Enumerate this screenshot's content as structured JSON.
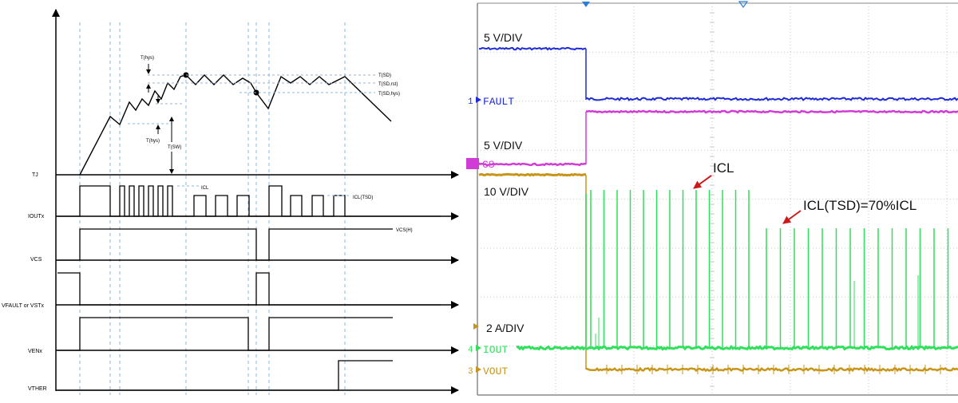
{
  "colors": {
    "dash_guide": "#8fb4dd",
    "scope_bg": "#ffffff",
    "scope_grid": "#c9c9c9",
    "scope_border": "#8a8a8a",
    "fault": "#1f2bd6",
    "cs": "#d23cd6",
    "iout": "#2fe05a",
    "vout": "#c8951a",
    "arrow_red": "#cc1a1a",
    "trigger": "#2a7fd8"
  },
  "timing": {
    "temp_annotations": {
      "t_hys_top": "T(hys)",
      "t_hys_bottom": "T(hys)",
      "t_sw": "T(SW)",
      "t_sd": "T(SD)",
      "t_sd_rst": "T(SD,rst)",
      "t_sd_hys": "T(SD,hys)"
    },
    "signal_labels": {
      "tj": "TJ",
      "ioutx": "IOUTx",
      "vcs": "VCS",
      "vfault": "VFAULT or VSTx",
      "venx": "VENx",
      "vther": "VTHER"
    },
    "inline_labels": {
      "icl": "ICL",
      "icl_tsd": "ICL(TSD)",
      "vcsh": "VCS(H)"
    }
  },
  "scope": {
    "scale_fault": "5 V/DIV",
    "scale_cs": "5 V/DIV",
    "scale_vout": "10 V/DIV",
    "scale_iout": "2 A/DIV",
    "channels": [
      {
        "num": "1",
        "name": "FAULT"
      },
      {
        "num": "",
        "name": "CS"
      },
      {
        "num": "4",
        "name": "IOUT"
      },
      {
        "num": "3",
        "name": "VOUT"
      }
    ],
    "annotation_icl": "ICL",
    "annotation_icl_tsd": "ICL(TSD)=70%ICL"
  }
}
